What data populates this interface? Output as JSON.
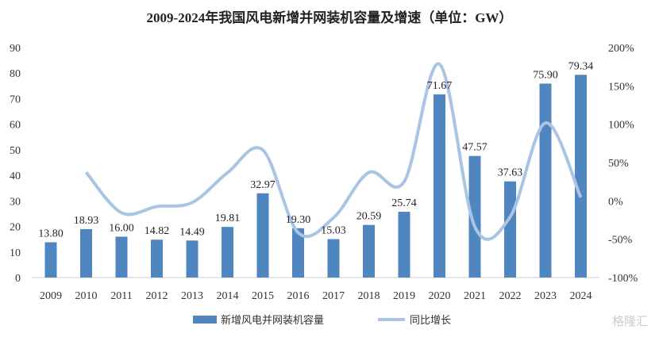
{
  "chart_data": {
    "type": "bar+line",
    "title": "2009-2024年我国风电新增并网装机容量及增速（单位：GW）",
    "categories": [
      "2009",
      "2010",
      "2011",
      "2012",
      "2013",
      "2014",
      "2015",
      "2016",
      "2017",
      "2018",
      "2019",
      "2020",
      "2021",
      "2022",
      "2023",
      "2024"
    ],
    "series": [
      {
        "name": "新增风电并网装机容量",
        "type": "bar",
        "axis": "left",
        "color": "#4f86c0",
        "values": [
          13.8,
          18.93,
          16.0,
          14.82,
          14.49,
          19.81,
          32.97,
          19.3,
          15.03,
          20.59,
          25.74,
          71.67,
          47.57,
          37.63,
          75.9,
          79.34
        ],
        "labels": [
          "13.80",
          "18.93",
          "16.00",
          "14.82",
          "14.49",
          "19.81",
          "32.97",
          "19.30",
          "15.03",
          "20.59",
          "25.74",
          "71.67",
          "47.57",
          "37.63",
          "75.90",
          "79.34"
        ]
      },
      {
        "name": "同比增长",
        "type": "line",
        "axis": "right",
        "color": "#a9c4e4",
        "values": [
          null,
          37.2,
          -15.5,
          -7.4,
          -2.2,
          36.7,
          66.4,
          -41.5,
          -22.1,
          37.0,
          25.0,
          178.4,
          -33.6,
          -20.9,
          101.7,
          4.5
        ]
      }
    ],
    "left_axis": {
      "ylim": [
        0,
        90
      ],
      "ticks": [
        "0",
        "10",
        "20",
        "30",
        "40",
        "50",
        "60",
        "70",
        "80",
        "90"
      ]
    },
    "right_axis": {
      "ylim": [
        -100,
        200
      ],
      "ticks": [
        "-100%",
        "-50%",
        "0%",
        "50%",
        "100%",
        "150%",
        "200%"
      ]
    },
    "legend": "bottom",
    "grid": false
  },
  "watermark": "格隆汇"
}
